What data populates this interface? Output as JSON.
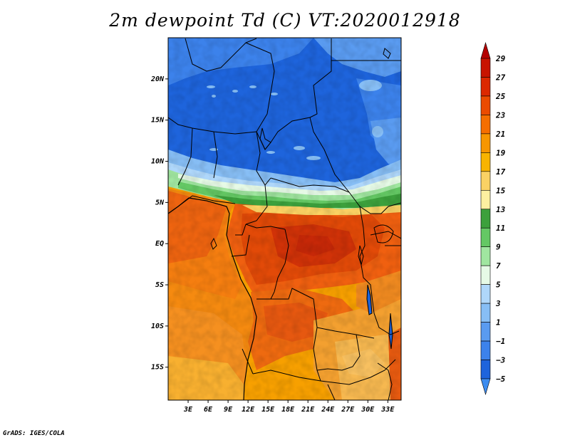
{
  "title": "2m dewpoint Td (C) VT:2020012918",
  "credit": "GrADS: IGES/COLA",
  "map": {
    "lat_range": [
      -19,
      25
    ],
    "lon_range": [
      0,
      35
    ],
    "lat_ticks": [
      {
        "value": 20,
        "label": "20N"
      },
      {
        "value": 15,
        "label": "15N"
      },
      {
        "value": 10,
        "label": "10N"
      },
      {
        "value": 5,
        "label": "5N"
      },
      {
        "value": 0,
        "label": "EQ"
      },
      {
        "value": -5,
        "label": "5S"
      },
      {
        "value": -10,
        "label": "10S"
      },
      {
        "value": -15,
        "label": "15S"
      }
    ],
    "lon_ticks": [
      {
        "value": 3,
        "label": "3E"
      },
      {
        "value": 6,
        "label": "6E"
      },
      {
        "value": 9,
        "label": "9E"
      },
      {
        "value": 12,
        "label": "12E"
      },
      {
        "value": 15,
        "label": "15E"
      },
      {
        "value": 18,
        "label": "18E"
      },
      {
        "value": 21,
        "label": "21E"
      },
      {
        "value": 24,
        "label": "24E"
      },
      {
        "value": 27,
        "label": "27E"
      },
      {
        "value": 30,
        "label": "30E"
      },
      {
        "value": 33,
        "label": "33E"
      }
    ]
  },
  "legend": {
    "levels": [
      {
        "label": "29",
        "color": "#a50000"
      },
      {
        "label": "27",
        "color": "#c81400"
      },
      {
        "label": "25",
        "color": "#dc2800"
      },
      {
        "label": "23",
        "color": "#eb4b00"
      },
      {
        "label": "21",
        "color": "#f56e00"
      },
      {
        "label": "19",
        "color": "#f79600"
      },
      {
        "label": "17",
        "color": "#f8b400"
      },
      {
        "label": "15",
        "color": "#fad264"
      },
      {
        "label": "13",
        "color": "#fdf0a0"
      },
      {
        "label": "11",
        "color": "#3ca03c"
      },
      {
        "label": "9",
        "color": "#64c864"
      },
      {
        "label": "7",
        "color": "#a0e6a0"
      },
      {
        "label": "5",
        "color": "#e6fae6"
      },
      {
        "label": "3",
        "color": "#afd7fa"
      },
      {
        "label": "1",
        "color": "#87bef5"
      },
      {
        "label": "−1",
        "color": "#5a9bf0"
      },
      {
        "label": "−3",
        "color": "#3c82eb"
      },
      {
        "label": "−5",
        "color": "#1e64dc"
      }
    ],
    "min_arrow_color": "#3c8cf0",
    "max_arrow_color": "#b40000"
  }
}
